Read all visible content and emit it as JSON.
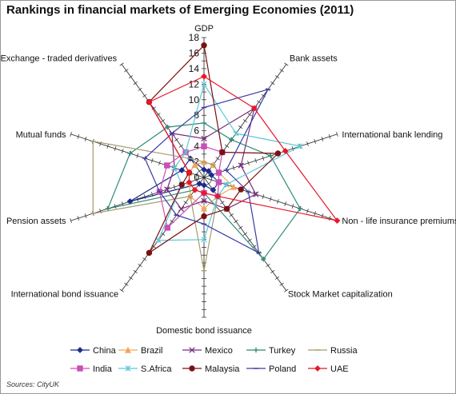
{
  "title": "Rankings in financial markets of Emerging Economies (2011)",
  "source": "Sources: CityUK",
  "chart_data": {
    "type": "radar",
    "axes": [
      "GDP",
      "Bank assets",
      "International bank lending",
      "Non - life insurance premiums",
      "Stock Market capitalization",
      "Domestic bond issuance",
      "International  bond issuance",
      "Pension assets",
      "Mutual funds",
      "Exchange - traded derivatives"
    ],
    "ticks": [
      0,
      2,
      4,
      6,
      8,
      10,
      12,
      14,
      16,
      18
    ],
    "range": [
      0,
      18
    ],
    "legend_position": "bottom",
    "series": [
      {
        "name": "China",
        "color": "#1f2a8c",
        "marker": "diamond",
        "values": [
          1,
          1,
          1,
          2,
          2,
          1,
          1,
          10,
          3,
          3
        ]
      },
      {
        "name": "Brazil",
        "color": "#f2a65a",
        "marker": "triangle",
        "values": [
          2,
          2,
          2,
          4,
          3,
          4,
          3,
          2,
          2,
          2
        ]
      },
      {
        "name": "Mexico",
        "color": "#7b2b7d",
        "marker": "x",
        "values": [
          5,
          11,
          5,
          7,
          5,
          3,
          5,
          5,
          4,
          7
        ]
      },
      {
        "name": "Turkey",
        "color": "#2e8b7a",
        "marker": "plus",
        "values": [
          7,
          6,
          9,
          13,
          13,
          2,
          2,
          13,
          10,
          8
        ]
      },
      {
        "name": "Russia",
        "color": "#a89b70",
        "marker": "dash",
        "values": [
          2,
          2,
          2,
          2,
          3,
          12,
          3,
          15,
          15,
          3
        ]
      },
      {
        "name": "India",
        "color": "#c94fb8",
        "marker": "square",
        "values": [
          4,
          4,
          2,
          2,
          3,
          2,
          8,
          6,
          5,
          4
        ]
      },
      {
        "name": "S.Africa",
        "color": "#5ec7d6",
        "marker": "star",
        "values": [
          12,
          7,
          13,
          3,
          3,
          8,
          10,
          3,
          4,
          4
        ]
      },
      {
        "name": "Malaysia",
        "color": "#7a1010",
        "marker": "circle",
        "values": [
          17,
          4,
          10,
          5,
          5,
          5,
          12,
          3,
          2,
          12
        ]
      },
      {
        "name": "Poland",
        "color": "#3a3aa8",
        "marker": "dash",
        "values": [
          9,
          14,
          3,
          6,
          12,
          6,
          6,
          6,
          8,
          7
        ]
      },
      {
        "name": "UAE",
        "color": "#e8182a",
        "marker": "diamond",
        "values": [
          13,
          11,
          11,
          18,
          3,
          2,
          2,
          2,
          2,
          12
        ]
      }
    ]
  }
}
